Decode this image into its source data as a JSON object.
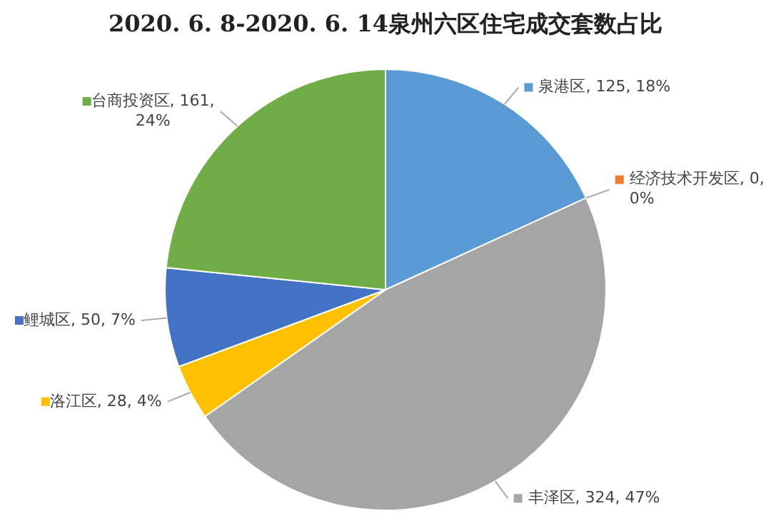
{
  "chart_data": {
    "type": "pie",
    "title": "2020. 6. 8-2020. 6. 14泉州六区住宅成交套数占比",
    "categories": [
      "泉港区",
      "经济技术开发区",
      "丰泽区",
      "洛江区",
      "鲤城区",
      "台商投资区"
    ],
    "values": [
      125,
      0,
      324,
      28,
      50,
      161
    ],
    "value_labels": [
      "125, 18%",
      "0, 0%",
      "324, 47%",
      "28, 4%",
      "50, 7%",
      "161, 24%"
    ],
    "colors": [
      "#5b9bd5",
      "#ed7d31",
      "#a5a5a5",
      "#ffc000",
      "#4472c4",
      "#70ad47"
    ],
    "legend": "right"
  }
}
